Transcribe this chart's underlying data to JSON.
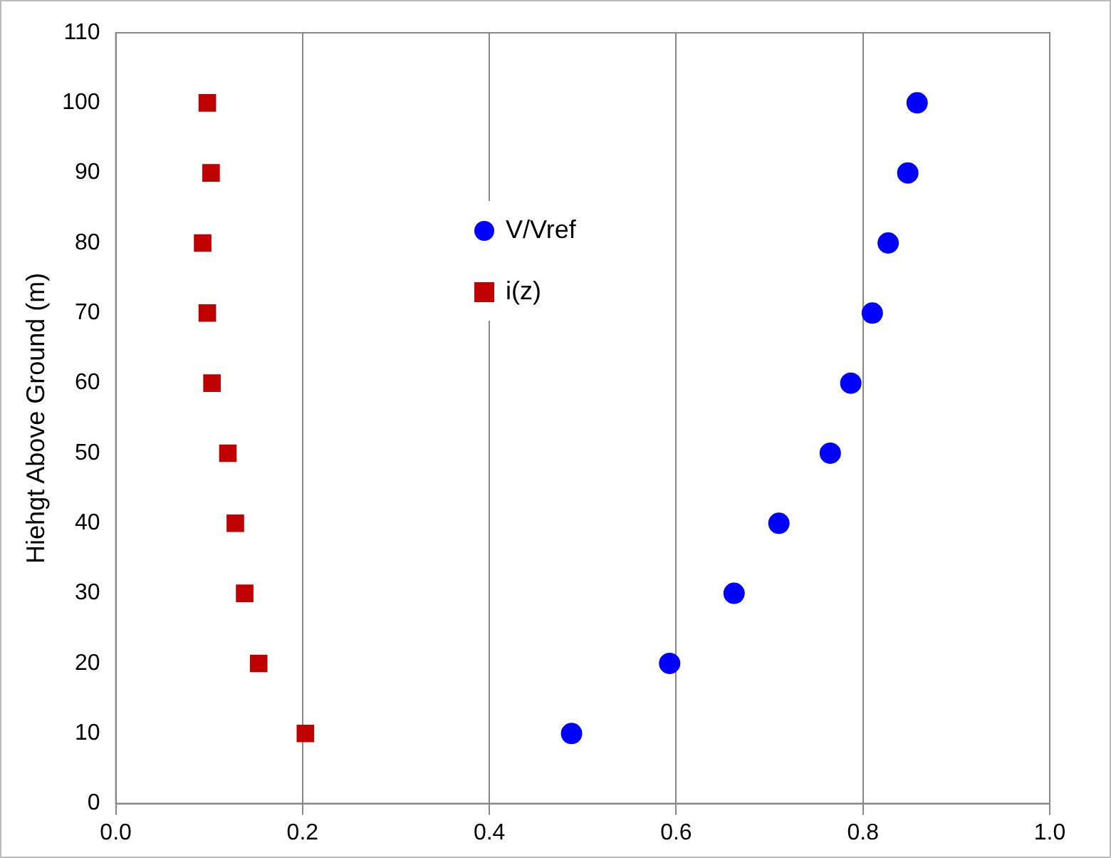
{
  "chart_data": {
    "type": "scatter",
    "ylabel": "Hiehgt Above Ground (m)",
    "xlim": [
      0,
      1
    ],
    "xticks": [
      {
        "value": 0,
        "label": "0.0"
      },
      {
        "value": 0.2,
        "label": "0.2"
      },
      {
        "value": 0.4,
        "label": "0.4"
      },
      {
        "value": 0.6,
        "label": "0.6"
      },
      {
        "value": 0.8,
        "label": "0.8"
      },
      {
        "value": 1,
        "label": "1.0"
      }
    ],
    "ylim": [
      0,
      110
    ],
    "yticks": [
      0,
      10,
      20,
      30,
      40,
      50,
      60,
      70,
      80,
      90,
      100,
      110
    ],
    "grid": "x",
    "legend": "top",
    "series": [
      {
        "name": "V/Vref",
        "color": "#0000ff",
        "marker": "circle",
        "x": [
          0.488,
          0.593,
          0.662,
          0.71,
          0.765,
          0.787,
          0.81,
          0.827,
          0.848,
          0.858
        ],
        "values": [
          10,
          20,
          30,
          40,
          50,
          60,
          70,
          80,
          90,
          100
        ]
      },
      {
        "name": "i(z)",
        "color": "#c00000",
        "marker": "square",
        "x": [
          0.203,
          0.153,
          0.138,
          0.128,
          0.12,
          0.103,
          0.098,
          0.093,
          0.102,
          0.098
        ],
        "values": [
          10,
          20,
          30,
          40,
          50,
          60,
          70,
          80,
          90,
          100
        ]
      }
    ]
  }
}
